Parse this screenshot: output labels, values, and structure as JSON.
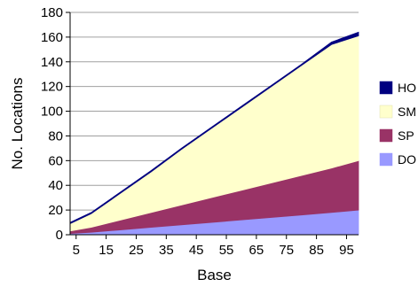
{
  "chart_data": {
    "type": "area",
    "stacked": true,
    "xlabel": "Base",
    "ylabel": "No. Locations",
    "xlim": [
      3,
      99
    ],
    "ylim": [
      0,
      180
    ],
    "x_ticks": [
      5,
      15,
      25,
      35,
      45,
      55,
      65,
      75,
      85,
      95
    ],
    "y_ticks": [
      0,
      20,
      40,
      60,
      80,
      100,
      120,
      140,
      160,
      180
    ],
    "grid": "horizontal",
    "legend_position": "right",
    "x": [
      3,
      10,
      20,
      30,
      40,
      50,
      60,
      70,
      80,
      90,
      99
    ],
    "series": [
      {
        "name": "DO",
        "color": "#9999ff",
        "values": [
          1,
          2,
          4,
          6,
          8,
          10,
          12,
          14,
          16,
          18,
          20
        ]
      },
      {
        "name": "SP",
        "color": "#993366",
        "values": [
          2,
          4,
          8,
          12,
          16,
          20,
          24,
          28,
          32,
          36,
          40
        ]
      },
      {
        "name": "SM",
        "color": "#ffffcc",
        "values": [
          6,
          11,
          22,
          33,
          45,
          56,
          67,
          78,
          89,
          100,
          101
        ]
      },
      {
        "name": "HO",
        "color": "#000080",
        "values": [
          1,
          1,
          1,
          1,
          1,
          1,
          1,
          1,
          1,
          2,
          3
        ]
      }
    ],
    "legend_order": [
      "HO",
      "SM",
      "SP",
      "DO"
    ]
  }
}
